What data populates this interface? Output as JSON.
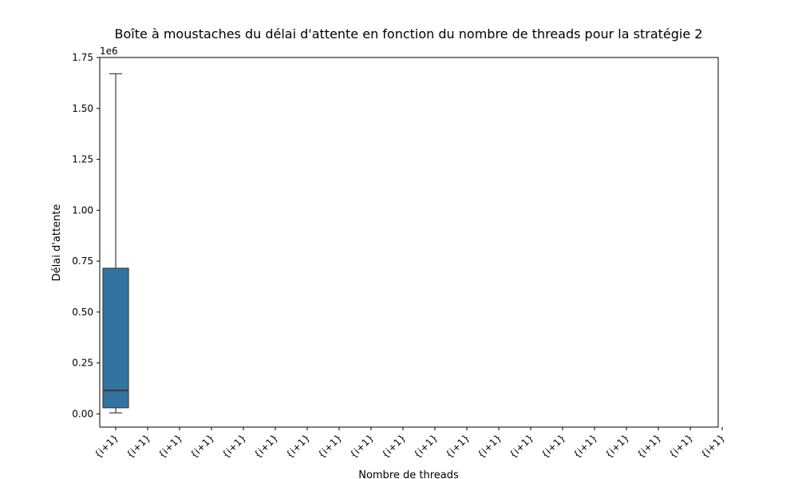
{
  "chart_data": {
    "type": "box",
    "title": "Boîte à moustaches du délai d'attente en fonction du nombre de threads pour la stratégie 2",
    "xlabel": "Nombre de threads",
    "ylabel": "Délai d'attente",
    "y_offset_label": "1e6",
    "ylim": [
      -0.065,
      1.75
    ],
    "yticks": [
      0.0,
      0.25,
      0.5,
      0.75,
      1.0,
      1.25,
      1.5,
      1.75
    ],
    "ytick_labels": [
      "0.00",
      "0.25",
      "0.50",
      "0.75",
      "1.00",
      "1.25",
      "1.50",
      "1.75"
    ],
    "categories": [
      "{i+1}",
      "{i+1}",
      "{i+1}",
      "{i+1}",
      "{i+1}",
      "{i+1}",
      "{i+1}",
      "{i+1}",
      "{i+1}",
      "{i+1}",
      "{i+1}",
      "{i+1}",
      "{i+1}",
      "{i+1}",
      "{i+1}",
      "{i+1}",
      "{i+1}",
      "{i+1}",
      "{i+1}",
      "{i+1}"
    ],
    "boxes": [
      {
        "category_index": 0,
        "whisker_low": 0.005,
        "q1": 0.03,
        "median": 0.115,
        "q3": 0.715,
        "whisker_high": 1.67
      }
    ],
    "colors": {
      "box_fill": "#3274a1",
      "box_edge": "#3f3f3f",
      "median": "#3f3f3f"
    },
    "grid": false,
    "legend": "none"
  }
}
